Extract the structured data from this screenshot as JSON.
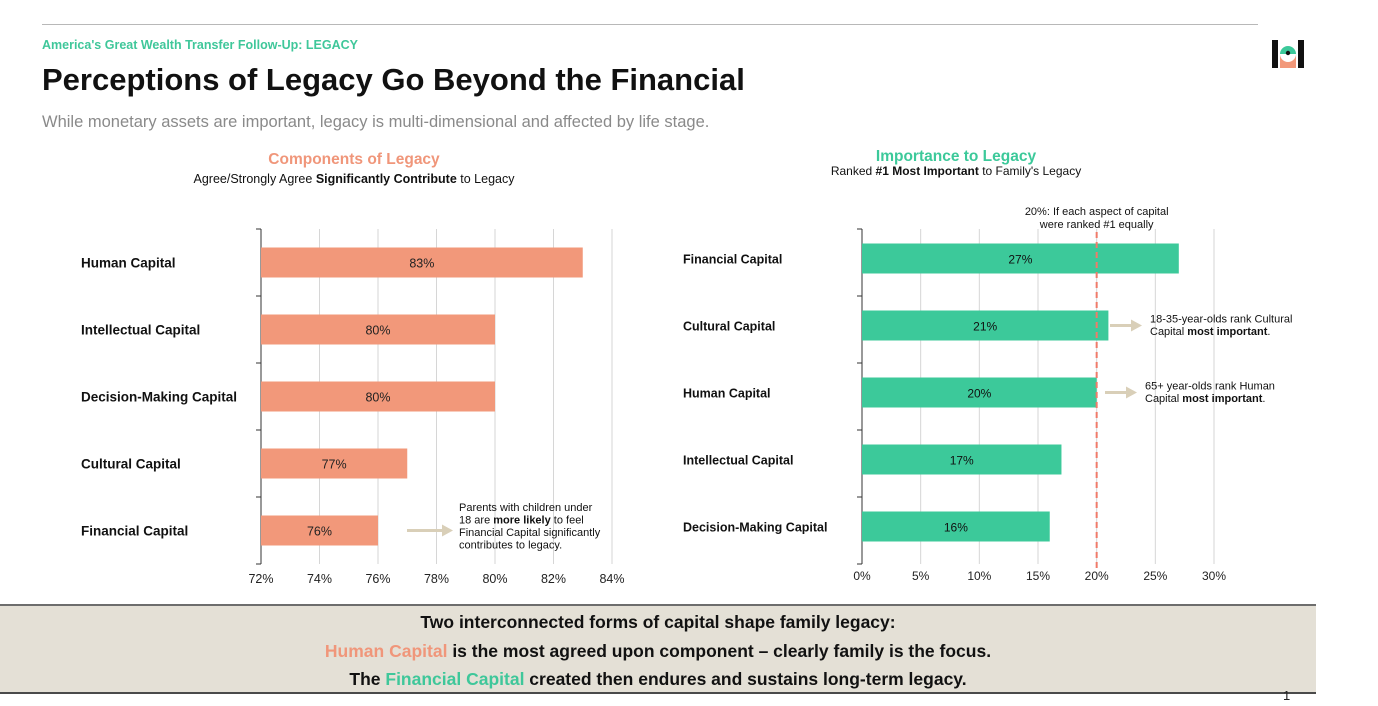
{
  "header": {
    "eyebrow": "America's Great Wealth Transfer Follow-Up: LEGACY",
    "title": "Perceptions of Legacy Go Beyond the Financial",
    "subtitle": "While monetary assets are important, legacy is multi-dimensional and affected by life stage."
  },
  "colors": {
    "salmon": "#f2987a",
    "teal": "#3cc99a",
    "arrow": "#d9cfb8",
    "refline": "#f07b6a"
  },
  "chart_data": [
    {
      "type": "bar",
      "orientation": "horizontal",
      "title": "Components of Legacy",
      "subtitle_parts": [
        {
          "text": "Agree/Strongly Agree ",
          "bold": false
        },
        {
          "text": "Significantly Contribute",
          "bold": true
        },
        {
          "text": " to Legacy",
          "bold": false
        }
      ],
      "categories": [
        "Human Capital",
        "Intellectual Capital",
        "Decision-Making Capital",
        "Cultural Capital",
        "Financial Capital"
      ],
      "values": [
        83,
        80,
        80,
        77,
        76
      ],
      "value_labels": [
        "83%",
        "80%",
        "80%",
        "77%",
        "76%"
      ],
      "xlim": [
        72,
        84
      ],
      "xticks": [
        72,
        74,
        76,
        78,
        80,
        82,
        84
      ],
      "xtick_labels": [
        "72%",
        "74%",
        "76%",
        "78%",
        "80%",
        "82%",
        "84%"
      ],
      "grid": true,
      "annotation": {
        "category": "Financial Capital",
        "lines": [
          [
            {
              "text": "Parents with children under",
              "bold": false
            }
          ],
          [
            {
              "text": "18 are ",
              "bold": false
            },
            {
              "text": "more likely",
              "bold": true
            },
            {
              "text": " to feel",
              "bold": false
            }
          ],
          [
            {
              "text": "Financial Capital significantly",
              "bold": false
            }
          ],
          [
            {
              "text": "contributes to legacy.",
              "bold": false
            }
          ]
        ]
      }
    },
    {
      "type": "bar",
      "orientation": "horizontal",
      "title": "Importance to Legacy",
      "subtitle_parts": [
        {
          "text": "Ranked ",
          "bold": false
        },
        {
          "text": "#1 Most Important",
          "bold": true
        },
        {
          "text": " to Family's Legacy",
          "bold": false
        }
      ],
      "categories": [
        "Financial Capital",
        "Cultural Capital",
        "Human Capital",
        "Intellectual Capital",
        "Decision-Making Capital"
      ],
      "values": [
        27,
        21,
        20,
        17,
        16
      ],
      "value_labels": [
        "27%",
        "21%",
        "20%",
        "17%",
        "16%"
      ],
      "xlim": [
        0,
        30
      ],
      "xticks": [
        0,
        5,
        10,
        15,
        20,
        25,
        30
      ],
      "xtick_labels": [
        "0%",
        "5%",
        "10%",
        "15%",
        "20%",
        "25%",
        "30%"
      ],
      "grid": true,
      "reference_line": {
        "value": 20,
        "label_lines": [
          "20%: If each aspect of capital",
          "were ranked #1 equally"
        ]
      },
      "annotations": [
        {
          "category": "Cultural Capital",
          "lines": [
            [
              {
                "text": "18-35-year-olds rank Cultural",
                "bold": false
              }
            ],
            [
              {
                "text": "Capital ",
                "bold": false
              },
              {
                "text": "most important",
                "bold": true
              },
              {
                "text": ".",
                "bold": false
              }
            ]
          ]
        },
        {
          "category": "Human Capital",
          "lines": [
            [
              {
                "text": "65+ year-olds rank Human",
                "bold": false
              }
            ],
            [
              {
                "text": "Capital ",
                "bold": false
              },
              {
                "text": "most important",
                "bold": true
              },
              {
                "text": ".",
                "bold": false
              }
            ]
          ]
        }
      ]
    }
  ],
  "banner": {
    "line1": "Two interconnected forms of capital shape family legacy:",
    "line2_highlight": "Human Capital",
    "line2_rest": " is the most agreed upon component – clearly family is the focus.",
    "line3_pre": "The ",
    "line3_highlight": "Financial Capital",
    "line3_rest": " created then endures and sustains long-term legacy."
  },
  "page_number": "1"
}
